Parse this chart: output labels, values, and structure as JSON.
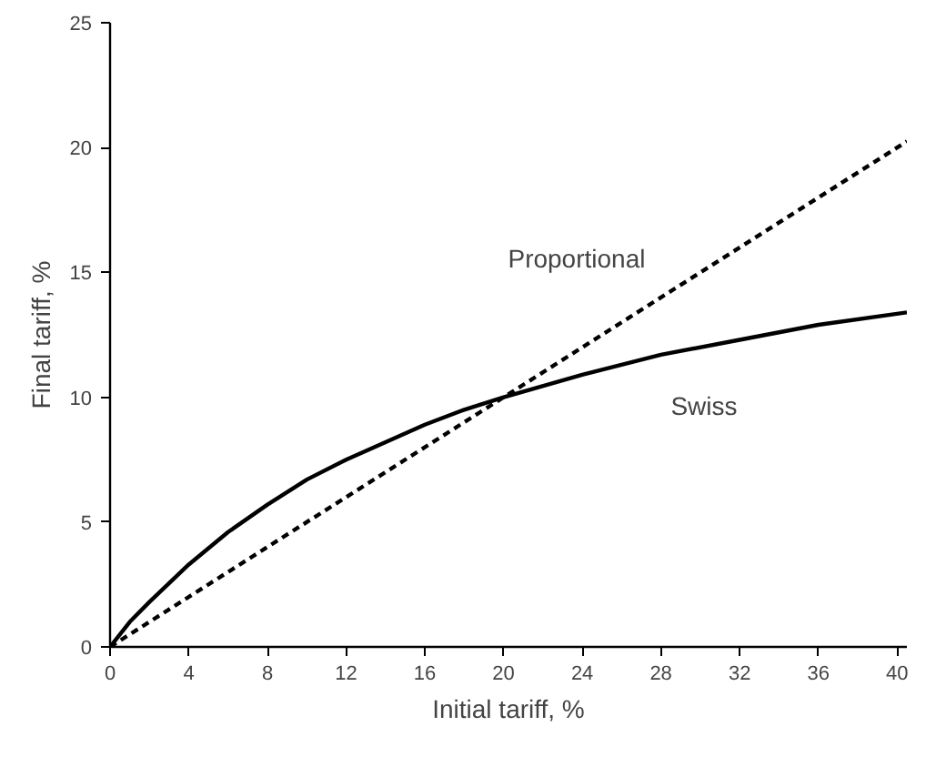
{
  "chart_data": {
    "type": "line",
    "xlabel": "Initial tariff, %",
    "ylabel": "Final tariff, %",
    "xlim": [
      0,
      40.5
    ],
    "xticks": [
      0,
      4,
      8,
      12,
      16,
      20,
      24,
      28,
      32,
      36,
      40
    ],
    "ylim": [
      0,
      25
    ],
    "yticks": [
      0,
      5,
      10,
      15,
      20,
      25
    ],
    "grid": false,
    "series": [
      {
        "name": "Proportional",
        "color": "#000000",
        "line_style": "dashed",
        "x": [
          0,
          40.5
        ],
        "values": [
          0,
          20.25
        ]
      },
      {
        "name": "Swiss",
        "color": "#000000",
        "line_style": "solid",
        "x": [
          0,
          1,
          2,
          4,
          6,
          8,
          10,
          12,
          14,
          16,
          18,
          20,
          24,
          28,
          32,
          36,
          40.5
        ],
        "values": [
          0,
          1.0,
          1.8,
          3.3,
          4.6,
          5.7,
          6.7,
          7.5,
          8.2,
          8.9,
          9.5,
          10.0,
          10.9,
          11.7,
          12.3,
          12.9,
          13.4
        ]
      }
    ]
  }
}
